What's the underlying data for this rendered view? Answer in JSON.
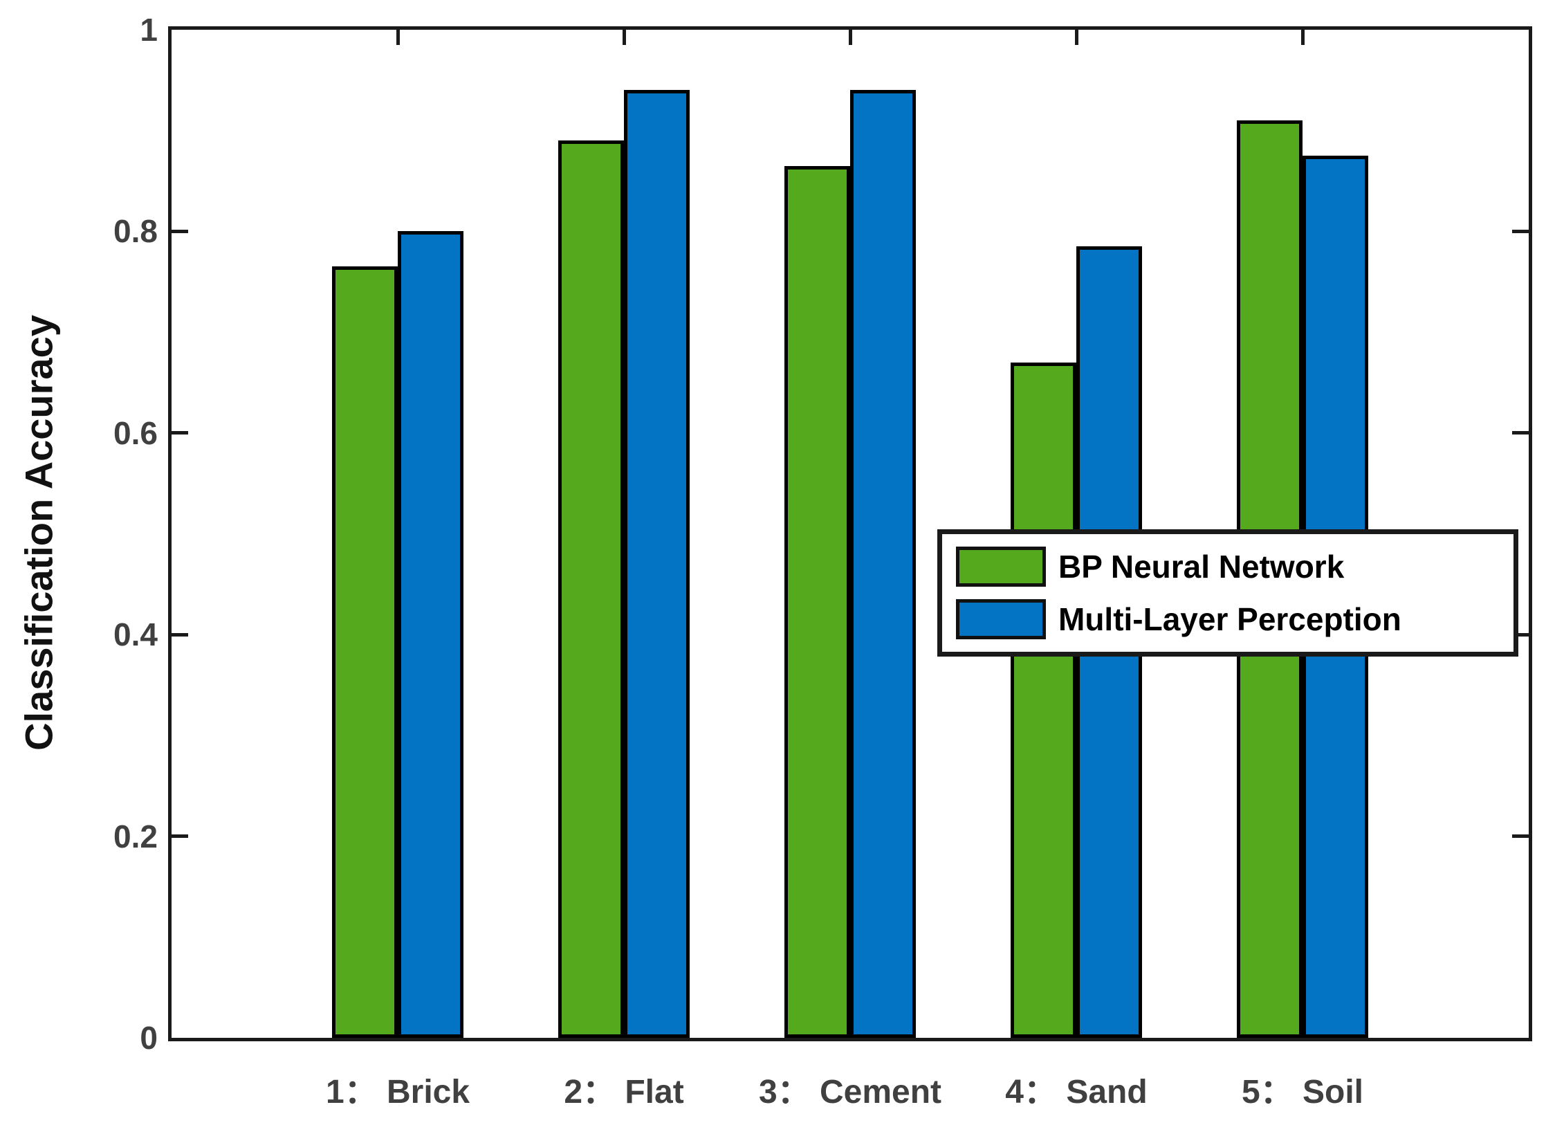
{
  "chart_data": {
    "type": "bar",
    "title": "",
    "xlabel": "",
    "ylabel": "Classification Accuracy",
    "categories": [
      "1： Brick",
      "2： Flat",
      "3： Cement",
      "4： Sand",
      "5： Soil"
    ],
    "series": [
      {
        "name": "BP Neural Network",
        "color": "#55A91C",
        "values": [
          0.765,
          0.89,
          0.865,
          0.67,
          0.91
        ]
      },
      {
        "name": "Multi-Layer Perception",
        "color": "#0374C4",
        "values": [
          0.8,
          0.94,
          0.94,
          0.785,
          0.875
        ]
      }
    ],
    "ylim": [
      0,
      1
    ],
    "xlim": [
      0,
      6
    ],
    "category_x_positions": [
      1,
      2,
      3,
      4,
      5
    ],
    "yticks": [
      0,
      0.2,
      0.4,
      0.6,
      0.8,
      1
    ],
    "ytick_labels": [
      "0",
      "0.2",
      "0.4",
      "0.6",
      "0.8",
      "1"
    ],
    "grid": false,
    "legend_position": "middle-right",
    "axis_color": "#1a1a1a",
    "tick_label_color": "#404040",
    "bar_edge_color": "#000000"
  }
}
